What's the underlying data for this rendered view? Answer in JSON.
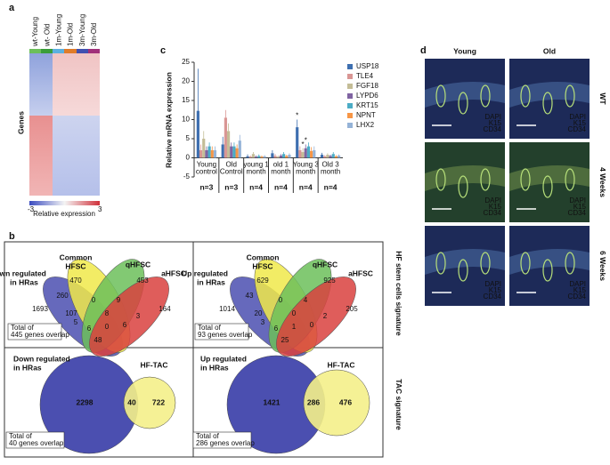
{
  "panel_a": {
    "label": "a",
    "columns": [
      "wt-Young",
      "wt- Old",
      "1m-Young",
      "1m-Old",
      "3m-Young",
      "3m-Old"
    ],
    "y_label": "Genes",
    "scale_min": "-3",
    "scale_max": "3",
    "scale_label": "Relative expression"
  },
  "chart_data": {
    "type": "bar",
    "label": "c",
    "y_label": "Relative mRNA expression",
    "categories": [
      [
        "Young",
        "control"
      ],
      [
        "Old",
        "Control"
      ],
      [
        "young 1",
        "month"
      ],
      [
        "old 1",
        "month"
      ],
      [
        "Young 3",
        "month"
      ],
      [
        "Old 3",
        "month"
      ]
    ],
    "n_labels": [
      "n=3",
      "n=3",
      "n=4",
      "n=4",
      "n=4",
      "n=4"
    ],
    "ylim": [
      -5,
      25
    ],
    "yticks": [
      -5,
      0,
      5,
      10,
      15,
      20,
      25
    ],
    "annotations": [
      "*",
      "*",
      "*"
    ],
    "series": [
      {
        "name": "USP18",
        "color": "#3e6fb0",
        "values": [
          12.3,
          3.5,
          0.4,
          1.2,
          8.0,
          0.8
        ],
        "errors": [
          11,
          2,
          0.5,
          0.8,
          2,
          0.5
        ]
      },
      {
        "name": "TLE4",
        "color": "#d99694",
        "values": [
          2.0,
          10.5,
          0.3,
          0.5,
          2.0,
          0.4
        ],
        "errors": [
          1.5,
          2,
          0.3,
          0.5,
          1,
          0.3
        ]
      },
      {
        "name": "FGF18",
        "color": "#c4bd97",
        "values": [
          5.0,
          7.0,
          1.0,
          0.3,
          1.5,
          0.8
        ],
        "errors": [
          2,
          2,
          0.5,
          0.3,
          1,
          0.4
        ]
      },
      {
        "name": "LYPD6",
        "color": "#8064a2",
        "values": [
          2.0,
          3.0,
          0.3,
          0.6,
          2.5,
          0.5
        ],
        "errors": [
          1,
          1,
          0.3,
          0.4,
          1,
          0.3
        ]
      },
      {
        "name": "KRT15",
        "color": "#4bacc6",
        "values": [
          3.0,
          3.0,
          0.5,
          1.0,
          3.0,
          1.0
        ],
        "errors": [
          1,
          1,
          0.4,
          0.5,
          1,
          0.5
        ]
      },
      {
        "name": "NPNT",
        "color": "#f79646",
        "values": [
          2.0,
          2.5,
          0.3,
          0.5,
          1.8,
          0.4
        ],
        "errors": [
          1,
          1,
          0.3,
          0.3,
          1,
          0.3
        ]
      },
      {
        "name": "LHX2",
        "color": "#95b3d7",
        "values": [
          2.0,
          4.5,
          0.4,
          0.8,
          2.0,
          0.6
        ],
        "errors": [
          1,
          1.5,
          0.3,
          0.4,
          1,
          0.3
        ]
      }
    ]
  },
  "panel_b": {
    "label": "b",
    "side_labels": [
      "HF stem cells signature",
      "TAC signature"
    ],
    "venn4": [
      {
        "sets": [
          [
            "Down regulated",
            "in HRas"
          ],
          [
            "Common",
            "HFSC"
          ],
          [
            "qHFSC"
          ],
          [
            "aHFSC"
          ]
        ],
        "numbers": [
          "1693",
          "260",
          "470",
          "453",
          "164",
          "0",
          "9",
          "5",
          "107",
          "8",
          "3",
          "6",
          "0",
          "6",
          "48"
        ],
        "total": [
          "Total of",
          "445 genes overlap"
        ]
      },
      {
        "sets": [
          [
            "Up regulated",
            "in HRas"
          ],
          [
            "Common",
            "HFSC"
          ],
          [
            "qHFSC"
          ],
          [
            "aHFSC"
          ]
        ],
        "numbers": [
          "1014",
          "43",
          "629",
          "925",
          "205",
          "0",
          "4",
          "3",
          "20",
          "0",
          "2",
          "6",
          "1",
          "0",
          "25"
        ],
        "total": [
          "Total of",
          "93 genes overlap"
        ]
      }
    ],
    "venn2": [
      {
        "sets": [
          [
            "Down regulated",
            "in HRas"
          ],
          [
            "HF-TAC"
          ]
        ],
        "numbers": [
          "2298",
          "40",
          "722"
        ],
        "total": [
          "Total of",
          "40 genes overlap"
        ]
      },
      {
        "sets": [
          [
            "Up regulated",
            "in HRas"
          ],
          [
            "HF-TAC"
          ]
        ],
        "numbers": [
          "1421",
          "286",
          "476"
        ],
        "total": [
          "Total of",
          "286 genes overlap"
        ]
      }
    ]
  },
  "panel_d": {
    "label": "d",
    "columns": [
      "Young",
      "Old"
    ],
    "rows": [
      "WT",
      "4 Weeks",
      "6 Weeks"
    ],
    "stains": [
      "DAPI",
      "K15",
      "CD34"
    ]
  }
}
